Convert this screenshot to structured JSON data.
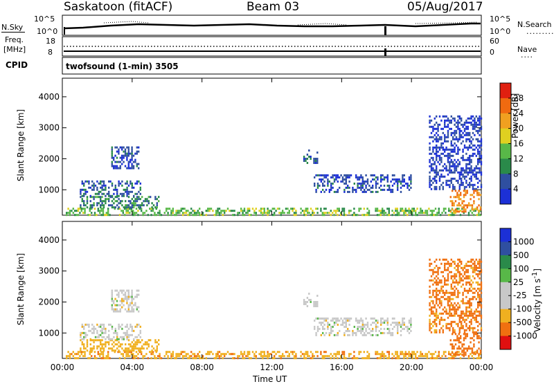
{
  "header": {
    "station": "Saskatoon (fitACF)",
    "beam": "Beam 03",
    "date": "05/Aug/2017"
  },
  "top_panels": {
    "nsky_label": "N.Sky",
    "nsearch_label": "N.Search",
    "nsky_ticks": [
      "10^5",
      "10^0"
    ],
    "nsearch_ticks": [
      "10^5",
      "10^0"
    ],
    "freq_label_1": "Freq.",
    "freq_label_2": "[MHz]",
    "freq_ticks": [
      "18",
      "8"
    ],
    "nave_label": "Nave",
    "nave_ticks": [
      "60",
      "0"
    ],
    "cpid_label": "CPID",
    "cpid_text": "twofsound (1-min) 3505"
  },
  "colors": {
    "power_scale": [
      "#1c30d6",
      "#2f4fa0",
      "#2a8a4a",
      "#58b848",
      "#e0d020",
      "#f0a020",
      "#f06a10",
      "#e02010"
    ],
    "velocity_scale": [
      "#e01010",
      "#f07010",
      "#f0b020",
      "#c8c8c8",
      "#c8c8c8",
      "#58b848",
      "#2a8a4a",
      "#2f4fa0",
      "#1c30d6"
    ]
  },
  "chart_data": [
    {
      "type": "heatmap",
      "title": "",
      "xlabel": "Time UT",
      "ylabel": "Slant Range [km]",
      "x_ticks": [
        "00:00",
        "04:00",
        "08:00",
        "12:00",
        "16:00",
        "20:00",
        "00:00"
      ],
      "y_ticks": [
        "1000",
        "2000",
        "3000",
        "4000"
      ],
      "xlim": [
        0,
        24
      ],
      "ylim": [
        180,
        4600
      ],
      "colorbar": {
        "label": "Power [dB]",
        "ticks": [
          "4",
          "8",
          "12",
          "16",
          "20",
          "24",
          "28"
        ],
        "range": [
          0,
          32
        ]
      },
      "regions": [
        {
          "t0": 0.2,
          "t1": 24.0,
          "r0": 190,
          "r1": 420,
          "value": 14
        },
        {
          "t0": 1.0,
          "t1": 5.5,
          "r0": 420,
          "r1": 800,
          "value": 9
        },
        {
          "t0": 1.0,
          "t1": 4.5,
          "r0": 800,
          "r1": 1300,
          "value": 6
        },
        {
          "t0": 2.8,
          "t1": 4.4,
          "r0": 1700,
          "r1": 2400,
          "value": 5
        },
        {
          "t0": 13.8,
          "t1": 14.6,
          "r0": 1850,
          "r1": 2300,
          "value": 6
        },
        {
          "t0": 14.4,
          "t1": 20.0,
          "r0": 900,
          "r1": 1500,
          "value": 5
        },
        {
          "t0": 21.0,
          "t1": 24.0,
          "r0": 1000,
          "r1": 3400,
          "value": 4
        },
        {
          "t0": 22.2,
          "t1": 24.0,
          "r0": 280,
          "r1": 1000,
          "value": 24
        }
      ]
    },
    {
      "type": "heatmap",
      "title": "",
      "xlabel": "Time UT",
      "ylabel": "Slant Range [km]",
      "x_ticks": [
        "00:00",
        "04:00",
        "08:00",
        "12:00",
        "16:00",
        "20:00",
        "00:00"
      ],
      "y_ticks": [
        "1000",
        "2000",
        "3000",
        "4000"
      ],
      "xlim": [
        0,
        24
      ],
      "ylim": [
        180,
        4600
      ],
      "colorbar": {
        "label": "Velocity [m s^-1]",
        "ticks": [
          "1000",
          "500",
          "100",
          "25",
          "-25",
          "-100",
          "-500",
          "-1000"
        ],
        "range": [
          -1000,
          1000
        ]
      },
      "regions": [
        {
          "t0": 0.2,
          "t1": 24.0,
          "r0": 190,
          "r1": 420,
          "value": -80
        },
        {
          "t0": 1.0,
          "t1": 5.5,
          "r0": 420,
          "r1": 800,
          "value": -60
        },
        {
          "t0": 1.0,
          "t1": 4.5,
          "r0": 800,
          "r1": 1300,
          "value": 0
        },
        {
          "t0": 2.8,
          "t1": 4.4,
          "r0": 1700,
          "r1": 2400,
          "value": 0
        },
        {
          "t0": 13.8,
          "t1": 14.6,
          "r0": 1850,
          "r1": 2300,
          "value": 0
        },
        {
          "t0": 14.4,
          "t1": 20.0,
          "r0": 900,
          "r1": 1500,
          "value": 0
        },
        {
          "t0": 21.0,
          "t1": 24.0,
          "r0": 1000,
          "r1": 3400,
          "value": -120
        },
        {
          "t0": 22.2,
          "t1": 24.0,
          "r0": 280,
          "r1": 1000,
          "value": -400
        }
      ]
    }
  ]
}
